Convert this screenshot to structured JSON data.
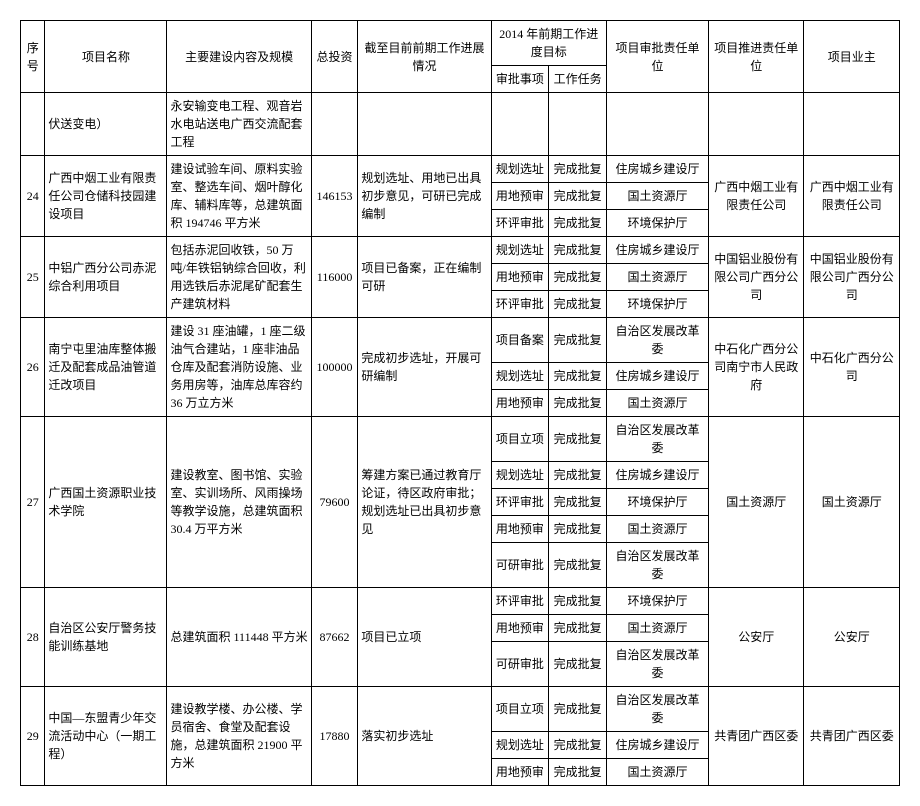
{
  "header": {
    "seq": "序号",
    "name": "项目名称",
    "content": "主要建设内容及规模",
    "investment": "总投资",
    "progress": "截至目前前期工作进展情况",
    "goal2014": "2014 年前期工作进度目标",
    "approval": "审批事项",
    "task": "工作任务",
    "unit1": "项目审批责任单位",
    "unit2": "项目推进责任单位",
    "owner": "项目业主"
  },
  "row0": {
    "name": "伏送变电）",
    "content": "永安输变电工程、观音岩水电站送电广西交流配套工程"
  },
  "rows": [
    {
      "seq": "24",
      "name": "广西中烟工业有限责任公司仓储科技园建设项目",
      "content": "建设试验车间、原料实验室、整选车间、烟叶醇化库、辅料库等，总建筑面积 194746 平方米",
      "inv": "146153",
      "prog": "规划选址、用地已出具初步意见，可研已完成编制",
      "sub": [
        {
          "a": "规划选址",
          "t": "完成批复",
          "u": "住房城乡建设厅"
        },
        {
          "a": "用地预审",
          "t": "完成批复",
          "u": "国土资源厅"
        },
        {
          "a": "环评审批",
          "t": "完成批复",
          "u": "环境保护厅"
        }
      ],
      "unit2": "广西中烟工业有限责任公司",
      "owner": "广西中烟工业有限责任公司"
    },
    {
      "seq": "25",
      "name": "中铝广西分公司赤泥综合利用项目",
      "content": "包括赤泥回收铁，50 万吨/年铁铝钠综合回收，利用选铁后赤泥尾矿配套生产建筑材料",
      "inv": "116000",
      "prog": "项目已备案，正在编制可研",
      "sub": [
        {
          "a": "规划选址",
          "t": "完成批复",
          "u": "住房城乡建设厅"
        },
        {
          "a": "用地预审",
          "t": "完成批复",
          "u": "国土资源厅"
        },
        {
          "a": "环评审批",
          "t": "完成批复",
          "u": "环境保护厅"
        }
      ],
      "unit2": "中国铝业股份有限公司广西分公司",
      "owner": "中国铝业股份有限公司广西分公司"
    },
    {
      "seq": "26",
      "name": "南宁屯里油库整体搬迁及配套成品油管道迁改项目",
      "content": "建设 31 座油罐，1 座二级油气合建站，1 座非油品仓库及配套消防设施、业务用房等，油库总库容约 36 万立方米",
      "inv": "100000",
      "prog": "完成初步选址，开展可研编制",
      "sub": [
        {
          "a": "项目备案",
          "t": "完成批复",
          "u": "自治区发展改革委"
        },
        {
          "a": "规划选址",
          "t": "完成批复",
          "u": "住房城乡建设厅"
        },
        {
          "a": "用地预审",
          "t": "完成批复",
          "u": "国土资源厅"
        }
      ],
      "unit2": "中石化广西分公司南宁市人民政府",
      "owner": "中石化广西分公司"
    },
    {
      "seq": "27",
      "name": "广西国土资源职业技术学院",
      "content": "建设教室、图书馆、实验室、实训场所、风雨操场等教学设施，总建筑面积 30.4 万平方米",
      "inv": "79600",
      "prog": "筹建方案已通过教育厅论证，待区政府审批；规划选址已出具初步意见",
      "sub": [
        {
          "a": "项目立项",
          "t": "完成批复",
          "u": "自治区发展改革委"
        },
        {
          "a": "规划选址",
          "t": "完成批复",
          "u": "住房城乡建设厅"
        },
        {
          "a": "环评审批",
          "t": "完成批复",
          "u": "环境保护厅"
        },
        {
          "a": "用地预审",
          "t": "完成批复",
          "u": "国土资源厅"
        },
        {
          "a": "可研审批",
          "t": "完成批复",
          "u": "自治区发展改革委"
        }
      ],
      "unit2": "国土资源厅",
      "owner": "国土资源厅"
    },
    {
      "seq": "28",
      "name": "自治区公安厅警务技能训练基地",
      "content": "总建筑面积 111448 平方米",
      "inv": "87662",
      "prog": "项目已立项",
      "sub": [
        {
          "a": "环评审批",
          "t": "完成批复",
          "u": "环境保护厅"
        },
        {
          "a": "用地预审",
          "t": "完成批复",
          "u": "国土资源厅"
        },
        {
          "a": "可研审批",
          "t": "完成批复",
          "u": "自治区发展改革委"
        }
      ],
      "unit2": "公安厅",
      "owner": "公安厅"
    },
    {
      "seq": "29",
      "name": "中国—东盟青少年交流活动中心（一期工程）",
      "content": "建设教学楼、办公楼、学员宿舍、食堂及配套设施，总建筑面积 21900 平方米",
      "inv": "17880",
      "prog": "落实初步选址",
      "sub": [
        {
          "a": "项目立项",
          "t": "完成批复",
          "u": "自治区发展改革委"
        },
        {
          "a": "规划选址",
          "t": "完成批复",
          "u": "住房城乡建设厅"
        },
        {
          "a": "用地预审",
          "t": "完成批复",
          "u": "国土资源厅"
        }
      ],
      "unit2": "共青团广西区委",
      "owner": "共青团广西区委"
    }
  ]
}
